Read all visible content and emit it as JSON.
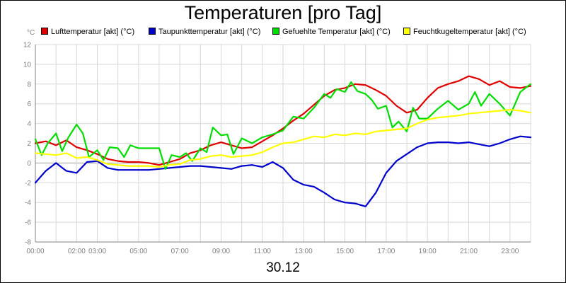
{
  "title": "Temperaturen [pro Tag]",
  "date_label": "30.12",
  "unit": "°C",
  "chart_data": {
    "type": "line",
    "title": "Temperaturen [pro Tag]",
    "xlabel": "30.12",
    "ylabel": "°C",
    "ylim": [
      -8,
      12
    ],
    "xlim": [
      0,
      24
    ],
    "grid": true,
    "legend_position": "top",
    "yticks": [
      "12",
      "10",
      "8",
      "6",
      "4",
      "2",
      "0",
      "-2",
      "-4",
      "-6",
      "-8"
    ],
    "xticks": [
      {
        "t": 0,
        "label": "00:00"
      },
      {
        "t": 2,
        "label": "02:00"
      },
      {
        "t": 3,
        "label": "03:00"
      },
      {
        "t": 5,
        "label": "05:00"
      },
      {
        "t": 7,
        "label": "07:00"
      },
      {
        "t": 9,
        "label": "09:00"
      },
      {
        "t": 11,
        "label": "11:00"
      },
      {
        "t": 13,
        "label": "13:00"
      },
      {
        "t": 15,
        "label": "15:00"
      },
      {
        "t": 17,
        "label": "17:00"
      },
      {
        "t": 19,
        "label": "19:00"
      },
      {
        "t": 21,
        "label": "21:00"
      },
      {
        "t": 23,
        "label": "23:00"
      }
    ],
    "series": [
      {
        "name": "Lufttemperatur [akt] (°C)",
        "color": "#e00000",
        "points": [
          [
            0,
            2.0
          ],
          [
            0.5,
            2.2
          ],
          [
            1,
            1.8
          ],
          [
            1.5,
            2.3
          ],
          [
            2,
            1.6
          ],
          [
            2.5,
            1.3
          ],
          [
            3,
            0.9
          ],
          [
            3.5,
            0.4
          ],
          [
            4,
            0.2
          ],
          [
            4.5,
            0.1
          ],
          [
            5,
            0.1
          ],
          [
            5.5,
            0.0
          ],
          [
            6,
            -0.2
          ],
          [
            6.5,
            0.1
          ],
          [
            7,
            0.4
          ],
          [
            7.5,
            1.0
          ],
          [
            8,
            1.3
          ],
          [
            8.5,
            1.8
          ],
          [
            9,
            2.1
          ],
          [
            9.5,
            1.8
          ],
          [
            10,
            1.5
          ],
          [
            10.5,
            1.6
          ],
          [
            11,
            2.2
          ],
          [
            11.5,
            2.8
          ],
          [
            12,
            3.5
          ],
          [
            12.5,
            4.3
          ],
          [
            13,
            5.0
          ],
          [
            13.5,
            5.9
          ],
          [
            14,
            6.8
          ],
          [
            14.5,
            7.4
          ],
          [
            15,
            7.6
          ],
          [
            15.5,
            8.0
          ],
          [
            16,
            7.9
          ],
          [
            16.5,
            7.4
          ],
          [
            17,
            6.8
          ],
          [
            17.5,
            5.8
          ],
          [
            18,
            5.1
          ],
          [
            18.5,
            5.4
          ],
          [
            19,
            6.6
          ],
          [
            19.5,
            7.6
          ],
          [
            20,
            8.0
          ],
          [
            20.5,
            8.3
          ],
          [
            21,
            8.8
          ],
          [
            21.5,
            8.5
          ],
          [
            22,
            7.9
          ],
          [
            22.5,
            8.3
          ],
          [
            23,
            7.7
          ],
          [
            23.5,
            7.6
          ],
          [
            24,
            7.8
          ]
        ]
      },
      {
        "name": "Taupunkttemperatur [akt] (°C)",
        "color": "#0000cc",
        "points": [
          [
            0,
            -2.0
          ],
          [
            0.5,
            -0.8
          ],
          [
            1,
            0.0
          ],
          [
            1.5,
            -0.8
          ],
          [
            2,
            -1.0
          ],
          [
            2.5,
            0.1
          ],
          [
            3,
            0.2
          ],
          [
            3.5,
            -0.5
          ],
          [
            4,
            -0.7
          ],
          [
            4.5,
            -0.7
          ],
          [
            5,
            -0.7
          ],
          [
            5.5,
            -0.7
          ],
          [
            6,
            -0.6
          ],
          [
            6.5,
            -0.5
          ],
          [
            7,
            -0.4
          ],
          [
            7.5,
            -0.3
          ],
          [
            8,
            -0.3
          ],
          [
            8.5,
            -0.4
          ],
          [
            9,
            -0.5
          ],
          [
            9.5,
            -0.6
          ],
          [
            10,
            -0.3
          ],
          [
            10.5,
            -0.2
          ],
          [
            11,
            -0.4
          ],
          [
            11.5,
            0.1
          ],
          [
            12,
            -0.5
          ],
          [
            12.5,
            -1.7
          ],
          [
            13,
            -2.2
          ],
          [
            13.5,
            -2.4
          ],
          [
            14,
            -3.0
          ],
          [
            14.5,
            -3.7
          ],
          [
            15,
            -4.0
          ],
          [
            15.5,
            -4.1
          ],
          [
            16,
            -4.4
          ],
          [
            16.5,
            -3.0
          ],
          [
            17,
            -1.0
          ],
          [
            17.5,
            0.2
          ],
          [
            18,
            0.9
          ],
          [
            18.5,
            1.6
          ],
          [
            19,
            2.0
          ],
          [
            19.5,
            2.1
          ],
          [
            20,
            2.1
          ],
          [
            20.5,
            2.0
          ],
          [
            21,
            2.1
          ],
          [
            21.5,
            1.9
          ],
          [
            22,
            1.7
          ],
          [
            22.5,
            2.0
          ],
          [
            23,
            2.4
          ],
          [
            23.5,
            2.7
          ],
          [
            24,
            2.6
          ]
        ]
      },
      {
        "name": "Gefuehlte Temperatur [akt] (°C)",
        "color": "#00dd00",
        "points": [
          [
            0,
            2.4
          ],
          [
            0.3,
            0.8
          ],
          [
            0.6,
            2.0
          ],
          [
            1,
            3.0
          ],
          [
            1.3,
            1.2
          ],
          [
            1.6,
            2.6
          ],
          [
            2,
            3.9
          ],
          [
            2.3,
            3.0
          ],
          [
            2.6,
            0.6
          ],
          [
            3,
            1.3
          ],
          [
            3.3,
            0.3
          ],
          [
            3.6,
            1.6
          ],
          [
            4,
            1.5
          ],
          [
            4.3,
            0.6
          ],
          [
            4.6,
            1.8
          ],
          [
            5,
            1.5
          ],
          [
            5.5,
            1.5
          ],
          [
            6,
            1.5
          ],
          [
            6.3,
            -0.6
          ],
          [
            6.6,
            0.8
          ],
          [
            7,
            0.6
          ],
          [
            7.3,
            1.0
          ],
          [
            7.6,
            0.2
          ],
          [
            8,
            1.5
          ],
          [
            8.3,
            1.1
          ],
          [
            8.6,
            3.6
          ],
          [
            9,
            2.8
          ],
          [
            9.3,
            2.9
          ],
          [
            9.6,
            0.9
          ],
          [
            10,
            2.5
          ],
          [
            10.5,
            2.0
          ],
          [
            11,
            2.6
          ],
          [
            11.5,
            2.9
          ],
          [
            12,
            3.3
          ],
          [
            12.5,
            4.7
          ],
          [
            13,
            4.5
          ],
          [
            13.5,
            5.6
          ],
          [
            14,
            7.0
          ],
          [
            14.3,
            6.6
          ],
          [
            14.6,
            7.5
          ],
          [
            15,
            7.2
          ],
          [
            15.3,
            8.2
          ],
          [
            15.6,
            7.3
          ],
          [
            16,
            7.0
          ],
          [
            16.3,
            6.4
          ],
          [
            16.6,
            5.5
          ],
          [
            17,
            5.8
          ],
          [
            17.3,
            3.6
          ],
          [
            17.6,
            4.2
          ],
          [
            18,
            3.2
          ],
          [
            18.3,
            5.6
          ],
          [
            18.6,
            4.5
          ],
          [
            19,
            4.5
          ],
          [
            19.5,
            5.5
          ],
          [
            20,
            6.3
          ],
          [
            20.5,
            5.4
          ],
          [
            21,
            6.0
          ],
          [
            21.3,
            7.2
          ],
          [
            21.6,
            5.8
          ],
          [
            22,
            7.0
          ],
          [
            22.5,
            6.0
          ],
          [
            23,
            4.8
          ],
          [
            23.5,
            7.2
          ],
          [
            24,
            8.0
          ]
        ]
      },
      {
        "name": "Feuchtkugeltemperatur [akt] (°C)",
        "color": "#ffff00",
        "points": [
          [
            0,
            1.0
          ],
          [
            0.5,
            0.9
          ],
          [
            1,
            0.8
          ],
          [
            1.5,
            1.0
          ],
          [
            2,
            0.5
          ],
          [
            2.5,
            0.6
          ],
          [
            3,
            0.3
          ],
          [
            3.5,
            -0.1
          ],
          [
            4,
            -0.2
          ],
          [
            4.5,
            -0.3
          ],
          [
            5,
            -0.3
          ],
          [
            5.5,
            -0.3
          ],
          [
            6,
            -0.4
          ],
          [
            6.5,
            -0.2
          ],
          [
            7,
            -0.1
          ],
          [
            7.5,
            0.3
          ],
          [
            8,
            0.4
          ],
          [
            8.5,
            0.7
          ],
          [
            9,
            0.8
          ],
          [
            9.5,
            0.6
          ],
          [
            10,
            0.7
          ],
          [
            10.5,
            0.8
          ],
          [
            11,
            1.1
          ],
          [
            11.5,
            1.6
          ],
          [
            12,
            2.0
          ],
          [
            12.5,
            2.1
          ],
          [
            13,
            2.4
          ],
          [
            13.5,
            2.7
          ],
          [
            14,
            2.6
          ],
          [
            14.5,
            2.9
          ],
          [
            15,
            2.8
          ],
          [
            15.5,
            3.0
          ],
          [
            16,
            2.9
          ],
          [
            16.5,
            3.2
          ],
          [
            17,
            3.3
          ],
          [
            17.5,
            3.4
          ],
          [
            18,
            3.5
          ],
          [
            18.5,
            4.0
          ],
          [
            19,
            4.4
          ],
          [
            19.5,
            4.6
          ],
          [
            20,
            4.7
          ],
          [
            20.5,
            4.8
          ],
          [
            21,
            5.0
          ],
          [
            21.5,
            5.1
          ],
          [
            22,
            5.2
          ],
          [
            22.5,
            5.3
          ],
          [
            23,
            5.4
          ],
          [
            23.5,
            5.3
          ],
          [
            24,
            5.1
          ]
        ]
      }
    ]
  }
}
